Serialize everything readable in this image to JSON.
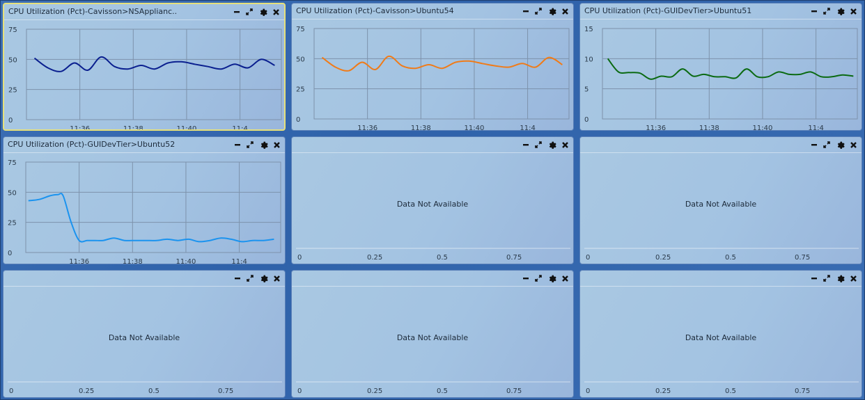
{
  "dashboard": {
    "panels": [
      {
        "title": "CPU Utilization (Pct)-Cavisson>NSApplianc..",
        "selected": true,
        "chart_data": {
          "type": "line",
          "ylim": [
            0,
            75
          ],
          "yticks": [
            0,
            25,
            50,
            75
          ],
          "xlim": [
            0,
            9.55
          ],
          "xticks": [
            {
              "label": "11:36",
              "value": 2
            },
            {
              "label": "11:38",
              "value": 4
            },
            {
              "label": "11:40",
              "value": 6
            },
            {
              "label": "11:4",
              "value": 8
            }
          ],
          "series": [
            {
              "color": "#0a1f8f",
              "x": [
                0.3,
                0.8,
                1.3,
                1.8,
                2.3,
                2.8,
                3.3,
                3.8,
                4.3,
                4.8,
                5.3,
                5.8,
                6.3,
                6.8,
                7.3,
                7.8,
                8.3,
                8.8,
                9.3
              ],
              "y": [
                51,
                43,
                40,
                47,
                41,
                52,
                44,
                42,
                45,
                42,
                47,
                48,
                46,
                44,
                42,
                46,
                43,
                50,
                45
              ]
            }
          ]
        }
      },
      {
        "title": "CPU Utilization (Pct)-Cavisson>Ubuntu54",
        "selected": false,
        "chart_data": {
          "type": "line",
          "ylim": [
            0,
            75
          ],
          "yticks": [
            0,
            25,
            50,
            75
          ],
          "xlim": [
            0,
            9.55
          ],
          "xticks": [
            {
              "label": "11:36",
              "value": 2
            },
            {
              "label": "11:38",
              "value": 4
            },
            {
              "label": "11:40",
              "value": 6
            },
            {
              "label": "11:4",
              "value": 8
            }
          ],
          "series": [
            {
              "color": "#f07b18",
              "x": [
                0.3,
                0.8,
                1.3,
                1.8,
                2.3,
                2.8,
                3.3,
                3.8,
                4.3,
                4.8,
                5.3,
                5.8,
                6.3,
                6.8,
                7.3,
                7.8,
                8.3,
                8.8,
                9.3
              ],
              "y": [
                51,
                43,
                40,
                47,
                41,
                52,
                44,
                42,
                45,
                42,
                47,
                48,
                46,
                44,
                43,
                46,
                43,
                51,
                45
              ]
            }
          ]
        }
      },
      {
        "title": "CPU Utilization (Pct)-GUIDevTier>Ubuntu51",
        "selected": false,
        "chart_data": {
          "type": "line",
          "ylim": [
            0,
            15
          ],
          "yticks": [
            0,
            5,
            10,
            15
          ],
          "xlim": [
            0,
            9.55
          ],
          "xticks": [
            {
              "label": "11:36",
              "value": 2
            },
            {
              "label": "11:38",
              "value": 4
            },
            {
              "label": "11:40",
              "value": 6
            },
            {
              "label": "11:4",
              "value": 8
            }
          ],
          "series": [
            {
              "color": "#0b6a12",
              "x": [
                0.2,
                0.6,
                1.0,
                1.4,
                1.8,
                2.2,
                2.6,
                3.0,
                3.4,
                3.8,
                4.2,
                4.6,
                5.0,
                5.4,
                5.8,
                6.2,
                6.6,
                7.0,
                7.4,
                7.8,
                8.2,
                8.6,
                9.0,
                9.4
              ],
              "y": [
                10,
                7.8,
                7.7,
                7.6,
                6.6,
                7.1,
                7,
                8.3,
                7.1,
                7.4,
                7,
                7,
                6.8,
                8.3,
                7,
                7,
                7.8,
                7.4,
                7.4,
                7.8,
                7,
                7,
                7.3,
                7.1
              ]
            }
          ]
        }
      },
      {
        "title": "CPU Utilization (Pct)-GUIDevTier>Ubuntu52",
        "selected": false,
        "chart_data": {
          "type": "line",
          "ylim": [
            0,
            75
          ],
          "yticks": [
            0,
            25,
            50,
            75
          ],
          "xlim": [
            0,
            9.55
          ],
          "xticks": [
            {
              "label": "11:36",
              "value": 2
            },
            {
              "label": "11:38",
              "value": 4
            },
            {
              "label": "11:40",
              "value": 6
            },
            {
              "label": "11:4",
              "value": 8
            }
          ],
          "series": [
            {
              "color": "#1a93ef",
              "x": [
                0.1,
                0.5,
                0.9,
                1.2,
                1.4,
                1.7,
                2.0,
                2.3,
                2.6,
                2.9,
                3.3,
                3.7,
                4.1,
                4.5,
                4.9,
                5.3,
                5.7,
                6.1,
                6.5,
                6.9,
                7.3,
                7.7,
                8.1,
                8.5,
                8.9,
                9.3
              ],
              "y": [
                43,
                44,
                47,
                48,
                47,
                25,
                10,
                10,
                10,
                10,
                12,
                10,
                10,
                10,
                10,
                11,
                10,
                11,
                9,
                10,
                12,
                11,
                9,
                10,
                10,
                11
              ]
            }
          ]
        }
      },
      {
        "title": "",
        "selected": false,
        "message": "Data Not Available",
        "xticks": [
          "0",
          "0.25",
          "0.5",
          "0.75"
        ]
      },
      {
        "title": "",
        "selected": false,
        "message": "Data Not Available",
        "xticks": [
          "0",
          "0.25",
          "0.5",
          "0.75"
        ]
      },
      {
        "title": "",
        "selected": false,
        "message": "Data Not Available",
        "xticks": [
          "0",
          "0.25",
          "0.5",
          "0.75"
        ]
      },
      {
        "title": "",
        "selected": false,
        "message": "Data Not Available",
        "xticks": [
          "0",
          "0.25",
          "0.5",
          "0.75"
        ]
      },
      {
        "title": "",
        "selected": false,
        "message": "Data Not Available",
        "xticks": [
          "0",
          "0.25",
          "0.5",
          "0.75"
        ]
      }
    ],
    "header_icons": [
      "minimize-icon",
      "expand-icon",
      "gear-icon",
      "close-icon"
    ],
    "colors": {
      "grid": "#7d92ab",
      "axis": "#55677c",
      "text": "#1c2a3a",
      "selected_border": "#e6e07a"
    }
  }
}
